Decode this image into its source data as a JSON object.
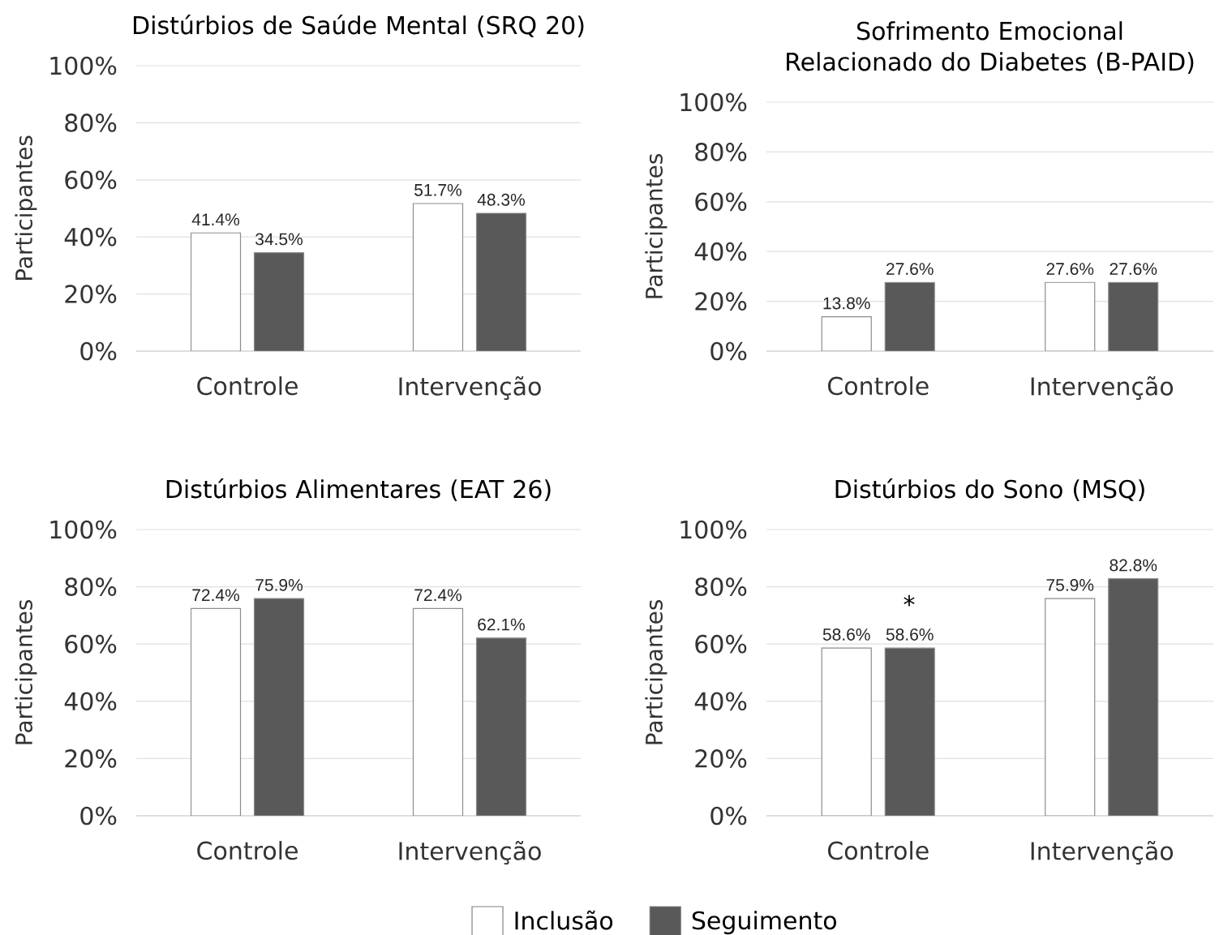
{
  "chart_data": [
    {
      "type": "bar",
      "title": "Distúrbios de Saúde Mental (SRQ 20)",
      "ylabel": "Participantes",
      "categories": [
        "Controle",
        "Intervenção"
      ],
      "series": [
        {
          "color": "#ffffff",
          "values": [
            41.4,
            51.7
          ],
          "value_labels": [
            "41.4%",
            "51.7%"
          ]
        },
        {
          "color": "#595959",
          "values": [
            34.5,
            48.3
          ],
          "value_labels": [
            "34.5%",
            "48.3%"
          ]
        }
      ],
      "ylim": [
        0,
        100
      ],
      "yticks": [
        {
          "value": 0,
          "label": "0%"
        },
        {
          "value": 20,
          "label": "20%"
        },
        {
          "value": 40,
          "label": "40%"
        },
        {
          "value": 60,
          "label": "60%"
        },
        {
          "value": 80,
          "label": "80%"
        },
        {
          "value": 100,
          "label": "100%"
        }
      ],
      "grid": "y"
    },
    {
      "type": "bar",
      "title": "Sofrimento Emocional Relacionado do Diabetes (B-PAID)",
      "ylabel": "Participantes",
      "categories": [
        "Controle",
        "Intervenção"
      ],
      "series": [
        {
          "color": "#ffffff",
          "values": [
            13.8,
            27.6
          ],
          "value_labels": [
            "13.8%",
            "27.6%"
          ]
        },
        {
          "color": "#595959",
          "values": [
            27.6,
            27.6
          ],
          "value_labels": [
            "27.6%",
            "27.6%"
          ]
        }
      ],
      "ylim": [
        0,
        100
      ],
      "yticks": [
        {
          "value": 0,
          "label": "0%"
        },
        {
          "value": 20,
          "label": "20%"
        },
        {
          "value": 40,
          "label": "40%"
        },
        {
          "value": 60,
          "label": "60%"
        },
        {
          "value": 80,
          "label": "80%"
        },
        {
          "value": 100,
          "label": "100%"
        }
      ],
      "grid": "y"
    },
    {
      "type": "bar",
      "title": "Distúrbios Alimentares (EAT 26)",
      "ylabel": "Participantes",
      "categories": [
        "Controle",
        "Intervenção"
      ],
      "series": [
        {
          "color": "#ffffff",
          "values": [
            72.4,
            72.4
          ],
          "value_labels": [
            "72.4%",
            "72.4%"
          ]
        },
        {
          "color": "#595959",
          "values": [
            75.9,
            62.1
          ],
          "value_labels": [
            "75.9%",
            "62.1%"
          ]
        }
      ],
      "ylim": [
        0,
        100
      ],
      "yticks": [
        {
          "value": 0,
          "label": "0%"
        },
        {
          "value": 20,
          "label": "20%"
        },
        {
          "value": 40,
          "label": "40%"
        },
        {
          "value": 60,
          "label": "60%"
        },
        {
          "value": 80,
          "label": "80%"
        },
        {
          "value": 100,
          "label": "100%"
        }
      ],
      "grid": "y"
    },
    {
      "type": "bar",
      "title": "Distúrbios do Sono (MSQ)",
      "ylabel": "Participantes",
      "categories": [
        "Controle",
        "Intervenção"
      ],
      "series": [
        {
          "name": "Inclusão",
          "color": "#ffffff",
          "values": [
            58.6,
            75.9
          ],
          "value_labels": [
            "58.6%",
            "75.9%"
          ]
        },
        {
          "name": "Seguimento",
          "color": "#595959",
          "values": [
            58.6,
            82.8
          ],
          "value_labels": [
            "58.6%",
            "82.8%"
          ]
        }
      ],
      "ylim": [
        0,
        100
      ],
      "yticks": [
        {
          "value": 0,
          "label": "0%"
        },
        {
          "value": 20,
          "label": "20%"
        },
        {
          "value": 40,
          "label": "40%"
        },
        {
          "value": 60,
          "label": "60%"
        },
        {
          "value": 80,
          "label": "80%"
        },
        {
          "value": 100,
          "label": "100%"
        }
      ],
      "grid": "y",
      "annotations": [
        "*"
      ],
      "legend": "bottom"
    }
  ]
}
